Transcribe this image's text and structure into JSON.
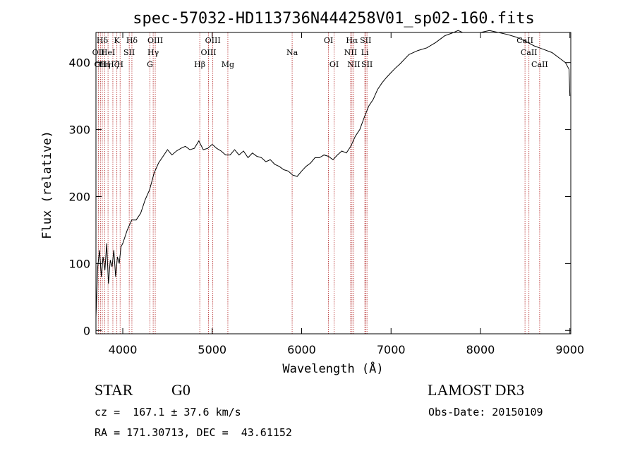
{
  "chart_data": {
    "type": "line",
    "title": "spec-57032-HD113736N444258V01_sp02-160.fits",
    "xlabel": "Wavelength (Å)",
    "ylabel": "Flux (relative)",
    "xlim": [
      3700,
      9010
    ],
    "ylim": [
      -5,
      445
    ],
    "xticks": [
      4000,
      5000,
      6000,
      7000,
      8000,
      9000
    ],
    "yticks": [
      0,
      100,
      200,
      300,
      400
    ],
    "grid": false,
    "line_color": "#000000",
    "marker_color": "#b22222",
    "series": [
      {
        "x": [
          3700,
          3720,
          3740,
          3760,
          3780,
          3800,
          3820,
          3840,
          3860,
          3880,
          3900,
          3920,
          3940,
          3960,
          3980,
          4000,
          4050,
          4100,
          4150,
          4200,
          4250,
          4300,
          4350,
          4400,
          4450,
          4500,
          4550,
          4600,
          4650,
          4700,
          4750,
          4800,
          4850,
          4900,
          4950,
          5000,
          5050,
          5100,
          5150,
          5200,
          5250,
          5300,
          5350,
          5400,
          5450,
          5500,
          5550,
          5600,
          5650,
          5700,
          5750,
          5800,
          5850,
          5900,
          5950,
          6000,
          6050,
          6100,
          6150,
          6200,
          6250,
          6300,
          6350,
          6400,
          6450,
          6500,
          6550,
          6600,
          6650,
          6700,
          6750,
          6800,
          6850,
          6900,
          6950,
          7000,
          7050,
          7100,
          7200,
          7300,
          7400,
          7500,
          7600,
          7700,
          7750,
          7800,
          7900,
          8000,
          8100,
          8200,
          8300,
          8400,
          8500,
          8600,
          8700,
          8800,
          8900,
          8950,
          8990,
          9000
        ],
        "y": [
          20,
          95,
          120,
          80,
          110,
          90,
          130,
          70,
          105,
          95,
          120,
          80,
          110,
          100,
          125,
          130,
          150,
          165,
          165,
          175,
          195,
          210,
          235,
          250,
          260,
          270,
          262,
          268,
          272,
          275,
          270,
          272,
          283,
          270,
          272,
          278,
          272,
          268,
          262,
          262,
          270,
          262,
          268,
          258,
          265,
          260,
          258,
          252,
          255,
          248,
          245,
          240,
          238,
          232,
          230,
          238,
          245,
          250,
          258,
          258,
          262,
          260,
          255,
          262,
          268,
          265,
          275,
          290,
          300,
          318,
          335,
          345,
          360,
          370,
          378,
          385,
          392,
          398,
          412,
          418,
          422,
          430,
          440,
          445,
          448,
          445,
          445,
          445,
          448,
          445,
          442,
          438,
          432,
          425,
          420,
          415,
          405,
          400,
          390,
          350
        ]
      }
    ],
    "line_markers": [
      {
        "x": 3727,
        "label": "OII",
        "row": 2
      },
      {
        "x": 3750,
        "label": "OII",
        "row": 3
      },
      {
        "x": 3771,
        "label": "Hδ",
        "row": 1
      },
      {
        "x": 3798,
        "label": "Hη",
        "row": 3
      },
      {
        "x": 3835,
        "label": "HeI",
        "row": 2
      },
      {
        "x": 3889,
        "label": "Hζ",
        "row": 3
      },
      {
        "x": 3934,
        "label": "K",
        "row": 1
      },
      {
        "x": 3970,
        "label": "H",
        "row": 3
      },
      {
        "x": 4072,
        "label": "SII",
        "row": 2
      },
      {
        "x": 4102,
        "label": "Hδ",
        "row": 1
      },
      {
        "x": 4304,
        "label": "G",
        "row": 3
      },
      {
        "x": 4340,
        "label": "Hγ",
        "row": 2
      },
      {
        "x": 4363,
        "label": "OIII",
        "row": 1
      },
      {
        "x": 4861,
        "label": "Hβ",
        "row": 3
      },
      {
        "x": 4959,
        "label": "OIII",
        "row": 2
      },
      {
        "x": 5007,
        "label": "OIII",
        "row": 1
      },
      {
        "x": 5175,
        "label": "Mg",
        "row": 3
      },
      {
        "x": 5894,
        "label": "Na",
        "row": 2
      },
      {
        "x": 6300,
        "label": "OI",
        "row": 1
      },
      {
        "x": 6363,
        "label": "OI",
        "row": 3
      },
      {
        "x": 6548,
        "label": "NII",
        "row": 2
      },
      {
        "x": 6563,
        "label": "Hα",
        "row": 1
      },
      {
        "x": 6583,
        "label": "NII",
        "row": 3
      },
      {
        "x": 6707,
        "label": "Li",
        "row": 2
      },
      {
        "x": 6716,
        "label": "SII",
        "row": 1
      },
      {
        "x": 6731,
        "label": "SII",
        "row": 3
      },
      {
        "x": 8498,
        "label": "CaII",
        "row": 1
      },
      {
        "x": 8542,
        "label": "CaII",
        "row": 2
      },
      {
        "x": 8662,
        "label": "CaII",
        "row": 3
      }
    ]
  },
  "info": {
    "object_class": "STAR",
    "subclass": "G0",
    "survey": "LAMOST DR3",
    "redshift": "cz =  167.1 ± 37.6 km/s",
    "obs_date": "Obs-Date: 20150109",
    "coords": "RA = 171.30713, DEC =  43.61152"
  }
}
